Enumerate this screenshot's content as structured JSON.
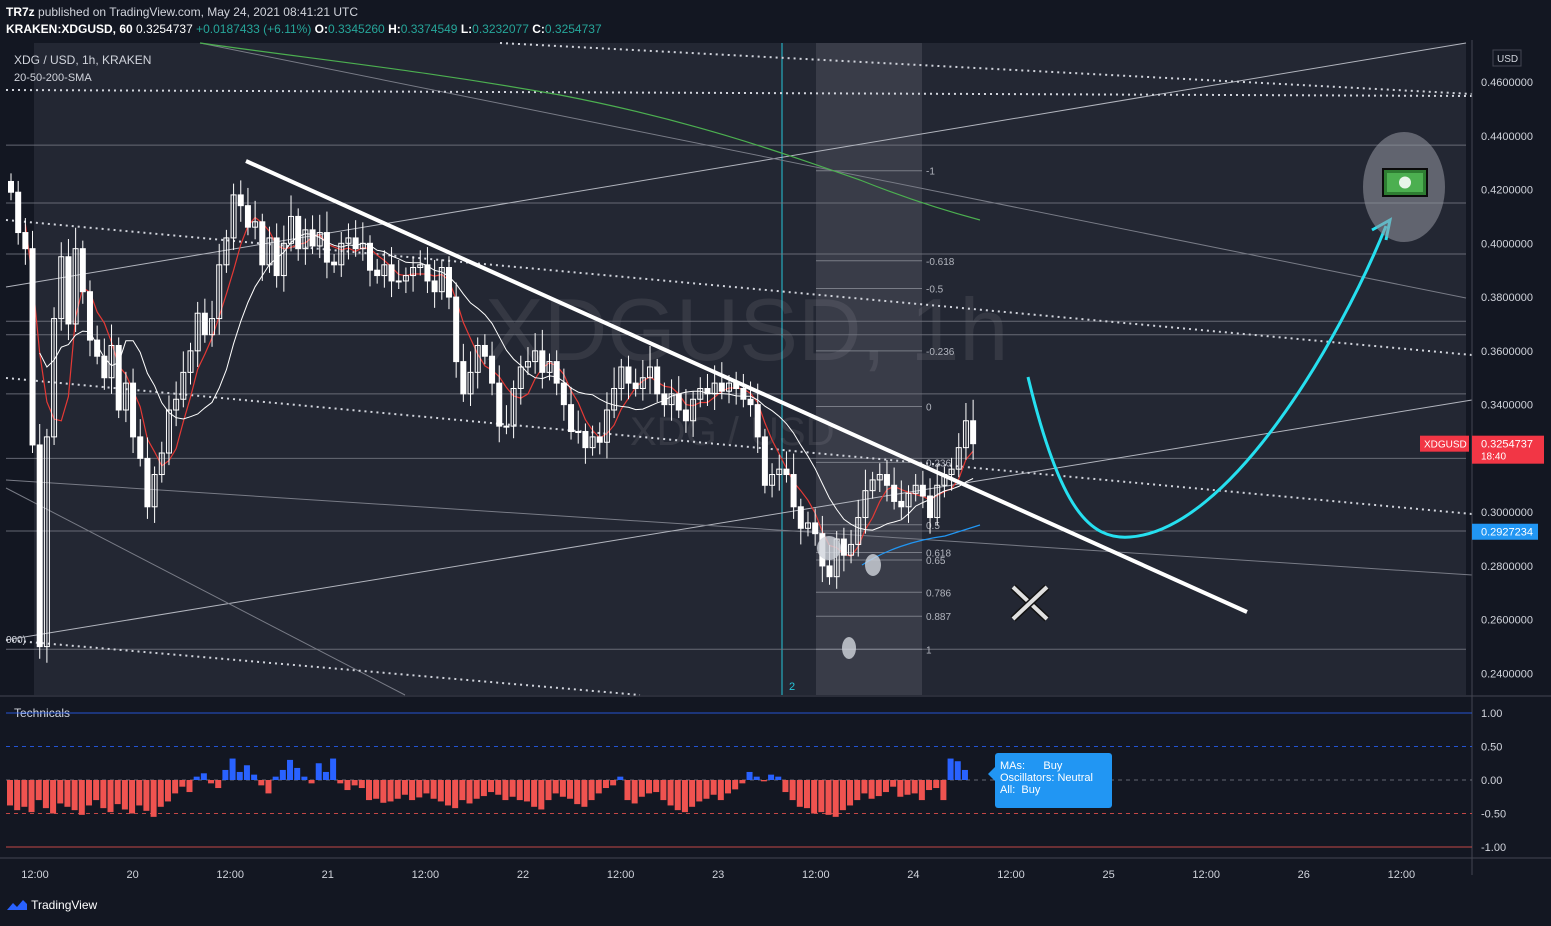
{
  "header": {
    "publisher": "TR7z",
    "published_text": "published on TradingView.com, May 24, 2021 08:41:21 UTC",
    "symbol_line": "KRAKEN:XDGUSD, 60",
    "last": "0.3254737",
    "change": "+0.0187433 (+6.11%)",
    "o_label": "O:",
    "o": "0.3345260",
    "h_label": "H:",
    "h": "0.3374549",
    "l_label": "L:",
    "l": "0.3232077",
    "c_label": "C:",
    "c": "0.3254737"
  },
  "legend": {
    "symbol_title": "XDG / USD, 1h, KRAKEN",
    "indicator": "20-50-200-SMA"
  },
  "watermark": {
    "main": "XDGUSD, 1h",
    "sub": "XDG / USD"
  },
  "colors": {
    "background": "#131722",
    "up": "#ffffff",
    "down": "#ffffff",
    "sma20": "#e53935",
    "sma50": "#ffffff",
    "sma200": "#4caf50",
    "current_price": "#f23645",
    "blue_level": "#2196f3",
    "arrow": "#26e0f0",
    "tech_buy": "#2962ff",
    "tech_sell": "#ef5350"
  },
  "icons": [
    "money-icon",
    "cross-icon",
    "tradingview-logo-icon"
  ],
  "price_axis": {
    "currency": "USD",
    "labels": [
      "0.4600000",
      "0.4400000",
      "0.4200000",
      "0.4000000",
      "0.3800000",
      "0.3600000",
      "0.3400000",
      "0.3000000",
      "0.2800000",
      "0.2600000",
      "0.2400000"
    ],
    "current_tag": "XDGUSD",
    "current_value": "0.3254737",
    "current_countdown": "18:40",
    "blue_value": "0.2927234"
  },
  "fib": {
    "labels": [
      "-1",
      "-0.618",
      "-0.5",
      "-0.236",
      "0",
      "0.236",
      "0.5",
      "0.618",
      "0.65",
      "0.786",
      "0.887",
      "1"
    ],
    "prices": [
      0.427,
      0.3935,
      0.3832,
      0.36,
      0.3393,
      0.3185,
      0.2953,
      0.285,
      0.2822,
      0.2702,
      0.2613,
      0.249
    ]
  },
  "left_edge_label": "000)",
  "vline_label": "2",
  "time_axis": {
    "labels": [
      "12:00",
      "20",
      "12:00",
      "21",
      "12:00",
      "22",
      "12:00",
      "23",
      "12:00",
      "24",
      "12:00",
      "25",
      "12:00",
      "26",
      "12:00"
    ]
  },
  "technicals": {
    "title": "Technicals",
    "axis_labels": [
      "1.00",
      "0.50",
      "0.00",
      "-0.50",
      "-1.00"
    ],
    "ma_label": "MAs:",
    "ma_value": "Buy",
    "osc_label": "Oscillators:",
    "osc_value": "Neutral",
    "all_label": "All:",
    "all_value": "Buy"
  },
  "footer": {
    "brand": "TradingView"
  },
  "chart_data": {
    "type": "candlestick",
    "title": "XDG / USD, 1h, KRAKEN",
    "indicator": "20-50-200-SMA",
    "ylim": [
      0.232,
      0.4745
    ],
    "x_labels": [
      "12:00",
      "20",
      "12:00",
      "21",
      "12:00",
      "22",
      "12:00",
      "23",
      "12:00",
      "24",
      "12:00",
      "25",
      "12:00",
      "26",
      "12:00"
    ],
    "closes": [
      0.419,
      0.404,
      0.398,
      0.325,
      0.25,
      0.328,
      0.372,
      0.395,
      0.37,
      0.398,
      0.382,
      0.364,
      0.358,
      0.35,
      0.362,
      0.338,
      0.348,
      0.328,
      0.32,
      0.302,
      0.314,
      0.322,
      0.338,
      0.342,
      0.352,
      0.36,
      0.374,
      0.366,
      0.372,
      0.392,
      0.402,
      0.418,
      0.414,
      0.406,
      0.408,
      0.392,
      0.402,
      0.388,
      0.4,
      0.41,
      0.398,
      0.405,
      0.399,
      0.404,
      0.393,
      0.392,
      0.4,
      0.402,
      0.398,
      0.4,
      0.39,
      0.388,
      0.392,
      0.386,
      0.386,
      0.388,
      0.391,
      0.392,
      0.386,
      0.382,
      0.391,
      0.38,
      0.356,
      0.344,
      0.352,
      0.362,
      0.358,
      0.348,
      0.332,
      0.332,
      0.346,
      0.354,
      0.356,
      0.36,
      0.352,
      0.356,
      0.348,
      0.34,
      0.33,
      0.33,
      0.324,
      0.328,
      0.326,
      0.338,
      0.346,
      0.354,
      0.348,
      0.346,
      0.35,
      0.354,
      0.344,
      0.34,
      0.344,
      0.338,
      0.334,
      0.342,
      0.346,
      0.344,
      0.348,
      0.345,
      0.348,
      0.346,
      0.342,
      0.34,
      0.328,
      0.31,
      0.314,
      0.316,
      0.314,
      0.302,
      0.294,
      0.296,
      0.292,
      0.28,
      0.276,
      0.29,
      0.284,
      0.288,
      0.298,
      0.308,
      0.312,
      0.314,
      0.31,
      0.304,
      0.302,
      0.307,
      0.31,
      0.306,
      0.298,
      0.31,
      0.314,
      0.316,
      0.324,
      0.334,
      0.3254737
    ],
    "series": [
      {
        "name": "SMA 20",
        "color": "#e53935"
      },
      {
        "name": "SMA 50",
        "color": "#ffffff"
      },
      {
        "name": "SMA 200",
        "color": "#4caf50"
      }
    ],
    "current_price": 0.3254737,
    "technicals_values": [
      -0.38,
      -0.45,
      -0.4,
      -0.48,
      -0.3,
      -0.42,
      -0.5,
      -0.35,
      -0.4,
      -0.45,
      -0.52,
      -0.38,
      -0.3,
      -0.42,
      -0.48,
      -0.36,
      -0.44,
      -0.5,
      -0.38,
      -0.46,
      -0.55,
      -0.4,
      -0.32,
      -0.2,
      -0.1,
      -0.18,
      0.05,
      0.1,
      -0.05,
      -0.12,
      0.15,
      0.32,
      0.12,
      0.22,
      0.08,
      -0.08,
      -0.2,
      0.05,
      0.15,
      0.3,
      0.18,
      0.05,
      -0.05,
      0.25,
      0.12,
      0.32,
      -0.05,
      -0.15,
      -0.08,
      -0.12,
      -0.3,
      -0.28,
      -0.34,
      -0.32,
      -0.28,
      -0.22,
      -0.3,
      -0.26,
      -0.2,
      -0.28,
      -0.32,
      -0.38,
      -0.42,
      -0.3,
      -0.35,
      -0.28,
      -0.24,
      -0.18,
      -0.22,
      -0.3,
      -0.25,
      -0.3,
      -0.32,
      -0.4,
      -0.44,
      -0.3,
      -0.2,
      -0.25,
      -0.28,
      -0.36,
      -0.4,
      -0.3,
      -0.2,
      -0.12,
      -0.08,
      0.05,
      -0.3,
      -0.35,
      -0.25,
      -0.2,
      -0.18,
      -0.3,
      -0.38,
      -0.45,
      -0.48,
      -0.4,
      -0.32,
      -0.28,
      -0.22,
      -0.3,
      -0.2,
      -0.14,
      -0.05,
      0.12,
      0.05,
      -0.02,
      0.08,
      0.05,
      -0.18,
      -0.3,
      -0.4,
      -0.42,
      -0.5,
      -0.48,
      -0.52,
      -0.55,
      -0.45,
      -0.38,
      -0.3,
      -0.2,
      -0.28,
      -0.24,
      -0.18,
      -0.1,
      -0.25,
      -0.22,
      -0.2,
      -0.3,
      -0.15,
      -0.12,
      -0.3,
      0.32,
      0.28,
      0.15
    ]
  }
}
